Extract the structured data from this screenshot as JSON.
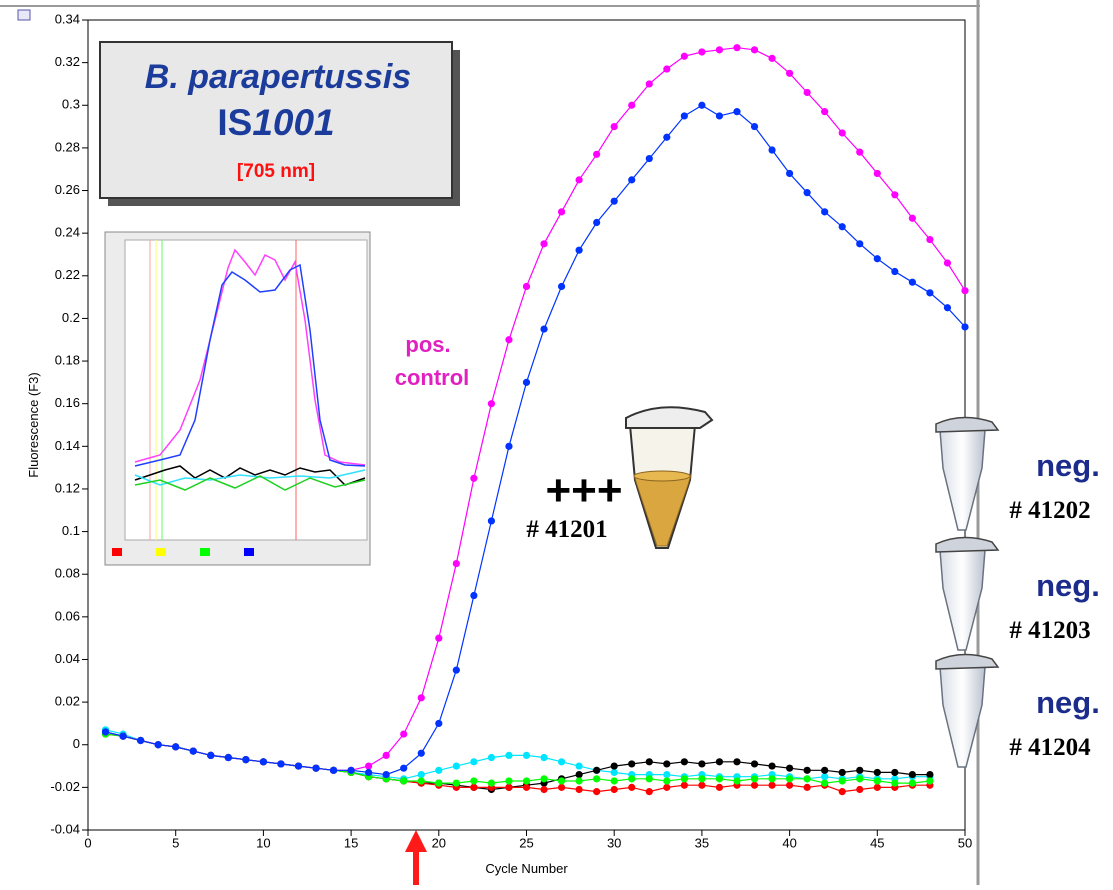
{
  "chart_data": {
    "type": "line",
    "x_label": "Cycle Number",
    "y_label": "Fluorescence (F3)",
    "x": [
      1,
      2,
      3,
      4,
      5,
      6,
      7,
      8,
      9,
      10,
      11,
      12,
      13,
      14,
      15,
      16,
      17,
      18,
      19,
      20,
      21,
      22,
      23,
      24,
      25,
      26,
      27,
      28,
      29,
      30,
      31,
      32,
      33,
      34,
      35,
      36,
      37,
      38,
      39,
      40,
      41,
      42,
      43,
      44,
      45,
      46,
      47,
      48,
      49,
      50
    ],
    "xlim": [
      0,
      50
    ],
    "xticks": [
      0,
      5,
      10,
      15,
      20,
      25,
      30,
      35,
      40,
      45,
      50
    ],
    "ylim": [
      -0.04,
      0.34
    ],
    "yticks": [
      -0.04,
      -0.02,
      0,
      0.02,
      0.04,
      0.06,
      0.08,
      0.1,
      0.12,
      0.14,
      0.16,
      0.18,
      0.2,
      0.22,
      0.24,
      0.26,
      0.28,
      0.3,
      0.32,
      0.34
    ],
    "series": [
      {
        "color": "#00e5ff",
        "values": [
          0.007,
          0.005,
          0.002,
          0.0,
          -0.001,
          -0.003,
          -0.005,
          -0.006,
          -0.007,
          -0.008,
          -0.009,
          -0.01,
          -0.011,
          -0.012,
          -0.013,
          -0.014,
          -0.015,
          -0.016,
          -0.014,
          -0.012,
          -0.01,
          -0.008,
          -0.006,
          -0.005,
          -0.005,
          -0.006,
          -0.008,
          -0.01,
          -0.012,
          -0.013,
          -0.014,
          -0.014,
          -0.014,
          -0.015,
          -0.014,
          -0.015,
          -0.015,
          -0.015,
          -0.014,
          -0.015,
          -0.016,
          -0.015,
          -0.016,
          -0.015,
          -0.016,
          -0.016,
          -0.015,
          -0.015,
          null,
          null
        ]
      },
      {
        "color": "#000000",
        "values": [
          0.006,
          0.004,
          0.002,
          0.0,
          -0.001,
          -0.003,
          -0.005,
          -0.006,
          -0.007,
          -0.008,
          -0.009,
          -0.01,
          -0.011,
          -0.012,
          -0.013,
          -0.015,
          -0.016,
          -0.017,
          -0.018,
          -0.018,
          -0.019,
          -0.02,
          -0.021,
          -0.02,
          -0.019,
          -0.018,
          -0.016,
          -0.014,
          -0.012,
          -0.01,
          -0.009,
          -0.008,
          -0.009,
          -0.008,
          -0.009,
          -0.008,
          -0.008,
          -0.009,
          -0.01,
          -0.011,
          -0.012,
          -0.012,
          -0.013,
          -0.012,
          -0.013,
          -0.013,
          -0.014,
          -0.014,
          null,
          null
        ]
      },
      {
        "color": "#ff0000",
        "values": [
          0.005,
          0.004,
          0.002,
          0.0,
          -0.001,
          -0.003,
          -0.005,
          -0.006,
          -0.007,
          -0.008,
          -0.009,
          -0.01,
          -0.011,
          -0.012,
          -0.013,
          -0.015,
          -0.016,
          -0.017,
          -0.018,
          -0.019,
          -0.02,
          -0.02,
          -0.02,
          -0.02,
          -0.02,
          -0.021,
          -0.02,
          -0.021,
          -0.022,
          -0.021,
          -0.02,
          -0.022,
          -0.02,
          -0.019,
          -0.019,
          -0.02,
          -0.019,
          -0.019,
          -0.019,
          -0.019,
          -0.02,
          -0.019,
          -0.022,
          -0.021,
          -0.02,
          -0.02,
          -0.019,
          -0.019,
          null,
          null
        ]
      },
      {
        "color": "#00ff00",
        "values": [
          0.005,
          0.004,
          0.002,
          0.0,
          -0.001,
          -0.003,
          -0.005,
          -0.006,
          -0.007,
          -0.008,
          -0.009,
          -0.01,
          -0.011,
          -0.012,
          -0.013,
          -0.015,
          -0.016,
          -0.017,
          -0.017,
          -0.018,
          -0.018,
          -0.017,
          -0.018,
          -0.017,
          -0.017,
          -0.016,
          -0.017,
          -0.017,
          -0.016,
          -0.017,
          -0.016,
          -0.016,
          -0.017,
          -0.016,
          -0.016,
          -0.016,
          -0.017,
          -0.016,
          -0.016,
          -0.016,
          -0.016,
          -0.018,
          -0.017,
          -0.016,
          -0.017,
          -0.018,
          -0.018,
          -0.017,
          null,
          null
        ]
      },
      {
        "color": "#ff00ff",
        "values": [
          0.006,
          0.004,
          0.002,
          0.0,
          -0.001,
          -0.003,
          -0.005,
          -0.006,
          -0.007,
          -0.008,
          -0.009,
          -0.01,
          -0.011,
          -0.012,
          -0.012,
          -0.01,
          -0.005,
          0.005,
          0.022,
          0.05,
          0.085,
          0.125,
          0.16,
          0.19,
          0.215,
          0.235,
          0.25,
          0.265,
          0.277,
          0.29,
          0.3,
          0.31,
          0.317,
          0.323,
          0.325,
          0.326,
          0.327,
          0.326,
          0.322,
          0.315,
          0.306,
          0.297,
          0.287,
          0.278,
          0.268,
          0.258,
          0.247,
          0.237,
          0.226,
          0.213
        ]
      },
      {
        "color": "#0033ff",
        "values": [
          0.006,
          0.004,
          0.002,
          0.0,
          -0.001,
          -0.003,
          -0.005,
          -0.006,
          -0.007,
          -0.008,
          -0.009,
          -0.01,
          -0.011,
          -0.012,
          -0.012,
          -0.013,
          -0.014,
          -0.011,
          -0.004,
          0.01,
          0.035,
          0.07,
          0.105,
          0.14,
          0.17,
          0.195,
          0.215,
          0.232,
          0.245,
          0.255,
          0.265,
          0.275,
          0.285,
          0.295,
          0.3,
          0.295,
          0.297,
          0.29,
          0.279,
          0.268,
          0.259,
          0.25,
          0.243,
          0.235,
          0.228,
          0.222,
          0.217,
          0.212,
          0.205,
          0.196
        ]
      }
    ],
    "box": {
      "organism": "B. parapertussis",
      "target_prefix": "IS",
      "target_number": "1001",
      "wavelength": "[705 nm]"
    },
    "annotations": {
      "positive": {
        "line1": "pos.",
        "line2": "control"
      },
      "sample": {
        "result": "+++",
        "id": "# 41201"
      },
      "negatives": [
        {
          "result": "neg.",
          "id": "# 41202"
        },
        {
          "result": "neg.",
          "id": "# 41203"
        },
        {
          "result": "neg.",
          "id": "# 41204"
        }
      ]
    }
  }
}
